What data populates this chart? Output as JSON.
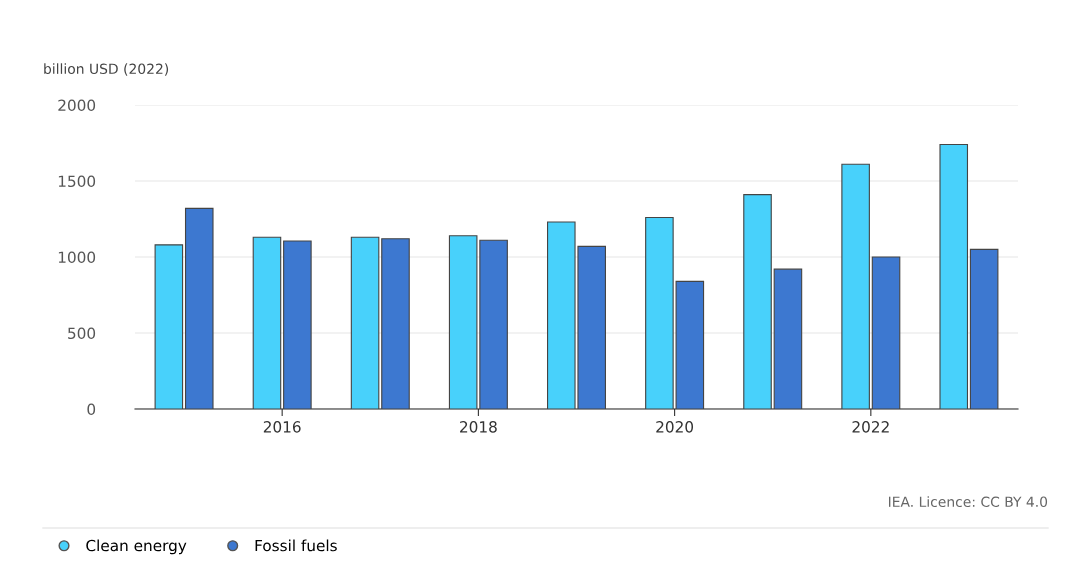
{
  "chart_data": {
    "type": "bar",
    "ylabel": "billion USD (2022)",
    "categories": [
      null,
      "2016",
      null,
      "2018",
      null,
      "2020",
      null,
      "2022",
      null
    ],
    "series": [
      {
        "name": "Clean energy",
        "color": "#48d1fb",
        "values": [
          1080,
          1130,
          1130,
          1140,
          1230,
          1260,
          1410,
          1610,
          1740
        ]
      },
      {
        "name": "Fossil fuels",
        "color": "#3d78d0",
        "values": [
          1320,
          1105,
          1120,
          1110,
          1070,
          840,
          920,
          1000,
          1050
        ]
      }
    ],
    "ylim": [
      0,
      2000
    ],
    "yticks": [
      0,
      500,
      1000,
      1500,
      2000
    ],
    "grid": "y",
    "legend": "bottom",
    "annotations": [
      "IEA. Licence: CC BY 4.0"
    ]
  }
}
